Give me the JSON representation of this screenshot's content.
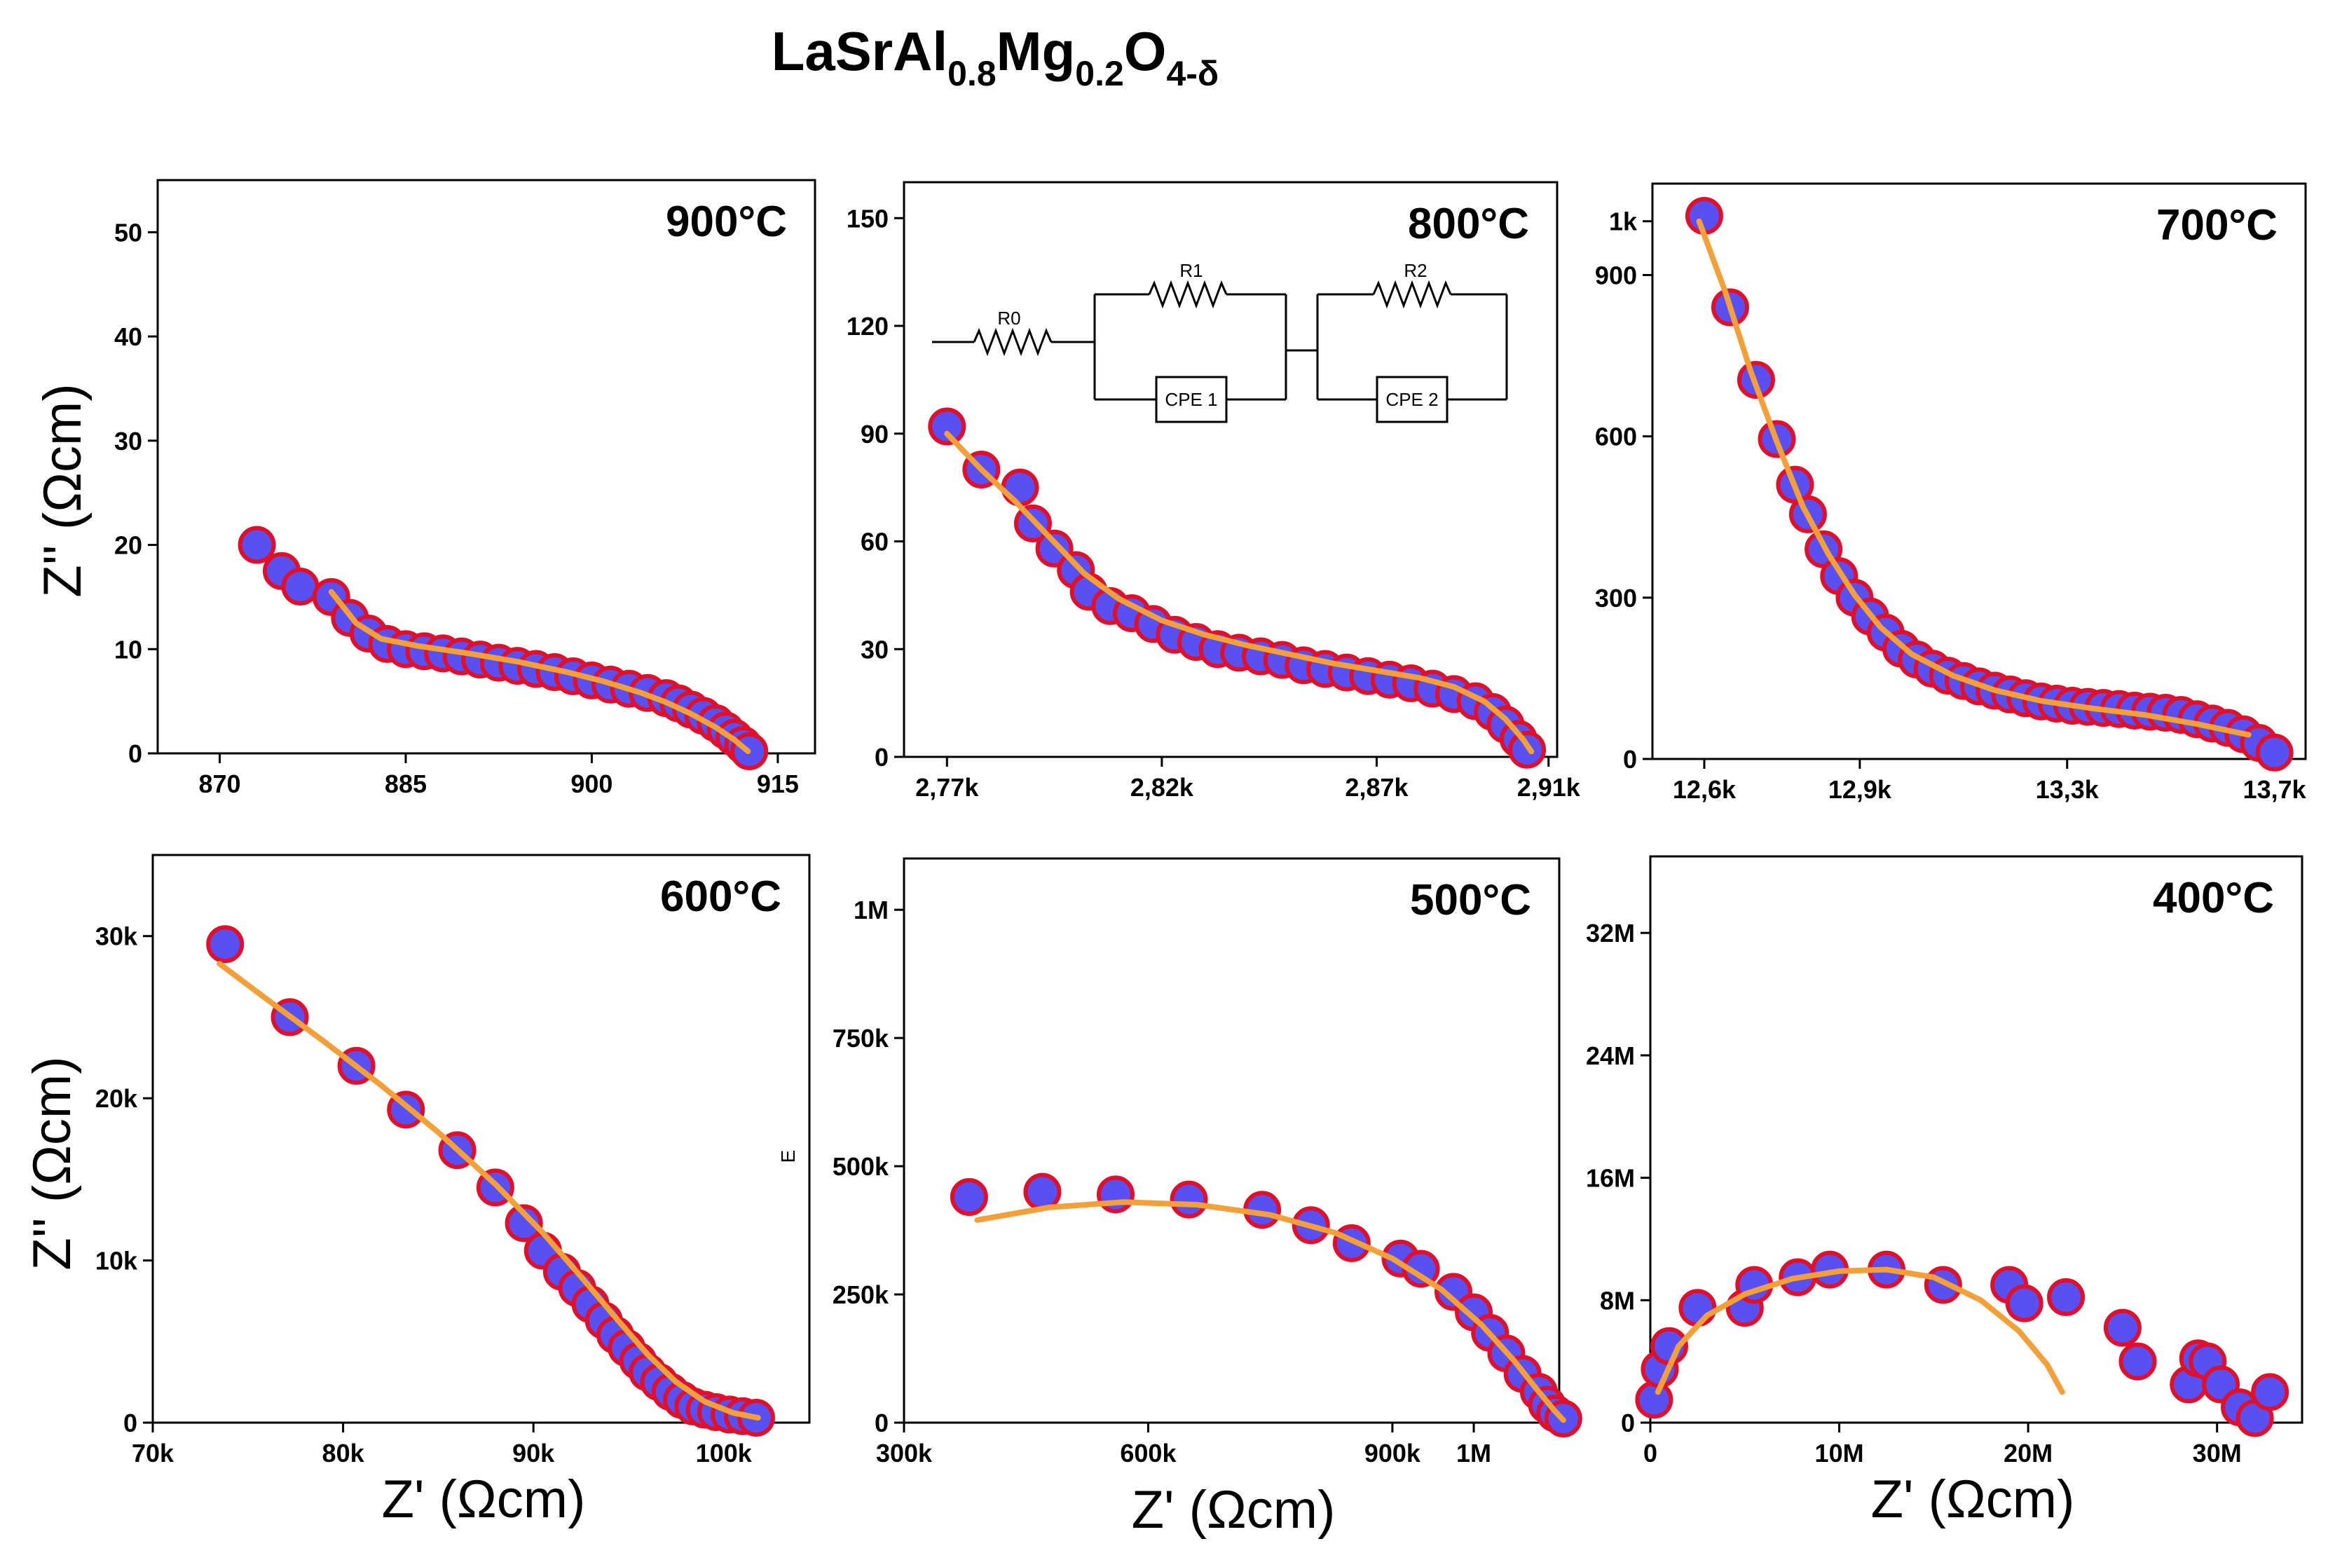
{
  "figure": {
    "title_parts": [
      {
        "text": "LaSrAl",
        "sub": false
      },
      {
        "text": "0.8",
        "sub": true
      },
      {
        "text": "Mg",
        "sub": false
      },
      {
        "text": "0.2",
        "sub": true
      },
      {
        "text": "O",
        "sub": false
      },
      {
        "text": "4-δ",
        "sub": true
      }
    ],
    "ylabel": "Z'' (Ωcm)",
    "xlabel": "Z' (Ωcm)",
    "stray_label": "E"
  },
  "colors": {
    "marker_fill": "#5a4ff0",
    "marker_stroke": "#e0102a",
    "fit_line": "#f4a03a",
    "axis": "#000000"
  },
  "circuit": {
    "r0": "R0",
    "r1": "R1",
    "r2": "R2",
    "cpe1": "CPE 1",
    "cpe2": "CPE 2"
  },
  "chart_data": [
    {
      "type": "scatter",
      "title": "900°C",
      "xlim": [
        865,
        918
      ],
      "ylim": [
        0,
        55
      ],
      "xticks": [
        870,
        885,
        900,
        915
      ],
      "xtick_labels": [
        "870",
        "885",
        "900",
        "915"
      ],
      "yticks": [
        0,
        10,
        20,
        30,
        40,
        50
      ],
      "ytick_labels": [
        "0",
        "10",
        "20",
        "30",
        "40",
        "50"
      ],
      "xlabel": "",
      "ylabel": "Z'' (Ωcm)",
      "series": [
        {
          "name": "measured",
          "x": [
            873,
            875,
            876.5,
            879,
            880.5,
            882,
            883.5,
            885,
            886.5,
            888,
            889.5,
            891,
            892.5,
            894,
            895.5,
            897,
            898.5,
            900,
            901.5,
            903,
            904.5,
            906,
            907,
            908,
            909,
            910,
            910.8,
            911.5,
            912.2,
            912.7
          ],
          "y": [
            20,
            17.5,
            16,
            15,
            13,
            11.5,
            10.5,
            10,
            9.8,
            9.6,
            9.3,
            9,
            8.7,
            8.4,
            8.1,
            7.8,
            7.4,
            7,
            6.6,
            6.2,
            5.8,
            5.3,
            4.8,
            4.2,
            3.6,
            2.9,
            2.2,
            1.5,
            0.8,
            0.2
          ]
        },
        {
          "name": "fit",
          "x": [
            879,
            881,
            883,
            886,
            890,
            894,
            898,
            901,
            904,
            906,
            908,
            910,
            911.5,
            912.6
          ],
          "y": [
            15.5,
            12.5,
            11,
            10.3,
            9.6,
            8.8,
            7.8,
            6.9,
            5.8,
            4.9,
            3.8,
            2.5,
            1.3,
            0.2
          ]
        }
      ]
    },
    {
      "type": "scatter",
      "title": "800°C",
      "xlim": [
        2760,
        2912
      ],
      "ylim": [
        0,
        160
      ],
      "xticks": [
        2770,
        2820,
        2870,
        2910
      ],
      "xtick_labels": [
        "2,77k",
        "2,82k",
        "2,87k",
        "2,91k"
      ],
      "yticks": [
        0,
        30,
        60,
        90,
        120,
        150
      ],
      "ytick_labels": [
        "0",
        "30",
        "60",
        "90",
        "120",
        "150"
      ],
      "xlabel": "",
      "ylabel": "",
      "series": [
        {
          "name": "measured",
          "x": [
            2770,
            2778,
            2787,
            2790,
            2795,
            2800,
            2803,
            2808,
            2813,
            2818,
            2823,
            2828,
            2833,
            2838,
            2843,
            2848,
            2853,
            2858,
            2863,
            2868,
            2873,
            2878,
            2883,
            2888,
            2893,
            2897,
            2900,
            2903,
            2905
          ],
          "y": [
            92,
            80,
            75,
            65,
            58,
            52,
            46,
            42,
            40,
            37,
            34,
            32,
            30,
            29,
            28,
            27,
            25.5,
            24.5,
            23.5,
            22.5,
            21.5,
            20.5,
            19,
            17.5,
            15.5,
            12.5,
            9,
            5,
            2
          ]
        },
        {
          "name": "fit",
          "x": [
            2770,
            2778,
            2786,
            2794,
            2802,
            2810,
            2820,
            2830,
            2840,
            2850,
            2860,
            2870,
            2880,
            2888,
            2895,
            2900,
            2904,
            2906
          ],
          "y": [
            90,
            80,
            71,
            61,
            51,
            44,
            38,
            34,
            31,
            28.5,
            26,
            24,
            22,
            19.5,
            15.5,
            10.5,
            5,
            1.5
          ]
        }
      ]
    },
    {
      "type": "scatter",
      "title": "700°C",
      "xlim": [
        12500,
        13760
      ],
      "ylim": [
        0,
        1070
      ],
      "xticks": [
        12600,
        12900,
        13300,
        13700
      ],
      "xtick_labels": [
        "12,6k",
        "12,9k",
        "13,3k",
        "13,7k"
      ],
      "yticks": [
        0,
        300,
        600,
        900,
        1000
      ],
      "ytick_labels": [
        "0",
        "300",
        "600",
        "900",
        "1k"
      ],
      "xlabel": "",
      "ylabel": "",
      "series": [
        {
          "name": "measured",
          "x": [
            12600,
            12650,
            12700,
            12740,
            12775,
            12800,
            12830,
            12860,
            12890,
            12920,
            12950,
            12980,
            13010,
            13040,
            13070,
            13100,
            13130,
            13160,
            13190,
            13220,
            13250,
            13280,
            13310,
            13340,
            13370,
            13400,
            13430,
            13460,
            13490,
            13520,
            13550,
            13580,
            13610,
            13640,
            13670,
            13700
          ],
          "y": [
            1010,
            840,
            705,
            595,
            510,
            455,
            390,
            340,
            300,
            265,
            235,
            205,
            185,
            168,
            155,
            145,
            135,
            127,
            120,
            113,
            107,
            103,
            99,
            97,
            95,
            93,
            90,
            88,
            86,
            82,
            74,
            66,
            58,
            46,
            30,
            12
          ]
        },
        {
          "name": "fit",
          "x": [
            12590,
            12640,
            12690,
            12740,
            12790,
            12840,
            12890,
            12940,
            13000,
            13080,
            13160,
            13250,
            13350,
            13450,
            13550,
            13650
          ],
          "y": [
            1000,
            870,
            720,
            590,
            470,
            380,
            305,
            245,
            195,
            155,
            128,
            108,
            94,
            82,
            65,
            45
          ]
        }
      ]
    },
    {
      "type": "scatter",
      "title": "600°C",
      "xlim": [
        70000,
        104500
      ],
      "ylim": [
        0,
        35000
      ],
      "xticks": [
        70000,
        80000,
        90000,
        100000
      ],
      "xtick_labels": [
        "70k",
        "80k",
        "90k",
        "100k"
      ],
      "yticks": [
        0,
        10000,
        20000,
        30000
      ],
      "ytick_labels": [
        "0",
        "10k",
        "20k",
        "30k"
      ],
      "xlabel": "Z' (Ωcm)",
      "ylabel": "Z'' (Ωcm)",
      "series": [
        {
          "name": "measured",
          "x": [
            73800,
            77200,
            80700,
            83300,
            86000,
            88000,
            89500,
            90500,
            91500,
            92300,
            93000,
            93700,
            94300,
            94900,
            95500,
            96000,
            96600,
            97200,
            97800,
            98400,
            99000,
            99600,
            100300,
            101000,
            101700
          ],
          "y": [
            29500,
            25000,
            22000,
            19300,
            16800,
            14500,
            12300,
            10600,
            9300,
            8300,
            7300,
            6300,
            5400,
            4600,
            3800,
            3100,
            2500,
            1900,
            1400,
            1000,
            800,
            650,
            500,
            400,
            300
          ]
        },
        {
          "name": "fit",
          "x": [
            73500,
            76000,
            79000,
            82000,
            85000,
            88000,
            90500,
            92500,
            94300,
            96000,
            97500,
            99000,
            100500,
            101800
          ],
          "y": [
            28300,
            26100,
            23500,
            20800,
            17900,
            14700,
            11700,
            9000,
            6500,
            4200,
            2500,
            1300,
            600,
            300
          ]
        }
      ]
    },
    {
      "type": "scatter",
      "title": "500°C",
      "xlim": [
        300000,
        1105000
      ],
      "ylim": [
        0,
        1100000
      ],
      "xticks": [
        300000,
        600000,
        900000
      ],
      "xtick_labels": [
        "300k",
        "600k",
        "900k"
      ],
      "extra_xticks": [
        {
          "value": 1000000,
          "label": "1M"
        }
      ],
      "yticks": [
        0,
        250000,
        500000,
        750000,
        1000000
      ],
      "ytick_labels": [
        "0",
        "250k",
        "500k",
        "750k",
        "1M"
      ],
      "xlabel": "Z' (Ωcm)",
      "ylabel": "",
      "series": [
        {
          "name": "measured",
          "x": [
            380000,
            470000,
            560000,
            650000,
            740000,
            800000,
            850000,
            910000,
            935000,
            975000,
            1000000,
            1020000,
            1040000,
            1060000,
            1080000,
            1090000,
            1100000,
            1110000
          ],
          "y": [
            440000,
            450000,
            445000,
            435000,
            415000,
            385000,
            350000,
            320000,
            300000,
            255000,
            215000,
            175000,
            135000,
            95000,
            60000,
            35000,
            18000,
            8000
          ]
        },
        {
          "name": "fit",
          "x": [
            390000,
            480000,
            570000,
            660000,
            750000,
            830000,
            900000,
            960000,
            1010000,
            1050000,
            1080000,
            1100000,
            1110000
          ],
          "y": [
            395000,
            420000,
            430000,
            425000,
            405000,
            370000,
            320000,
            260000,
            190000,
            120000,
            60000,
            22000,
            5000
          ]
        }
      ]
    },
    {
      "type": "scatter",
      "title": "400°C",
      "xlim": [
        0,
        34500000
      ],
      "ylim": [
        0,
        37000000
      ],
      "xticks": [
        0,
        10000000,
        20000000,
        30000000
      ],
      "xtick_labels": [
        "0",
        "10M",
        "20M",
        "30M"
      ],
      "yticks": [
        0,
        8000000,
        16000000,
        24000000,
        32000000
      ],
      "ytick_labels": [
        "0",
        "8M",
        "16M",
        "24M",
        "32M"
      ],
      "xlabel": "Z' (Ωcm)",
      "ylabel": "",
      "series": [
        {
          "name": "measured",
          "x": [
            200000,
            500000,
            1000000,
            2500000,
            5000000,
            5500000,
            7800000,
            9500000,
            12500000,
            15500000,
            19000000,
            19800000,
            22000000,
            25000000,
            25800000,
            28500000,
            29000000,
            29500000,
            30200000,
            31200000,
            32000000,
            32800000
          ],
          "y": [
            1500000,
            3500000,
            5000000,
            7500000,
            7500000,
            9000000,
            9500000,
            10000000,
            10000000,
            9000000,
            9000000,
            7800000,
            8200000,
            6200000,
            4000000,
            2500000,
            4200000,
            4000000,
            2500000,
            1000000,
            300000,
            2000000
          ]
        },
        {
          "name": "fit",
          "x": [
            400000,
            1500000,
            3000000,
            5000000,
            7500000,
            10000000,
            12500000,
            15000000,
            17500000,
            19500000,
            21000000,
            21800000
          ],
          "y": [
            2000000,
            5000000,
            7000000,
            8400000,
            9400000,
            9900000,
            10000000,
            9500000,
            8000000,
            6000000,
            3800000,
            2000000
          ]
        }
      ]
    }
  ]
}
